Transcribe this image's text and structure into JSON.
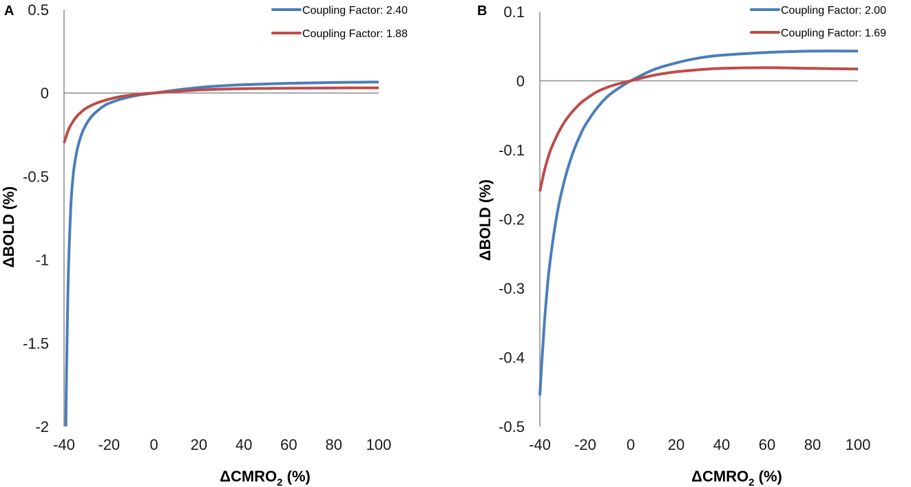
{
  "chart_data": [
    {
      "panel": "A",
      "type": "line",
      "xlabel": "ΔCMRO",
      "xlabel_sub": "2",
      "xlabel_unit": " (%)",
      "ylabel": "ΔBOLD (%)",
      "xlim": [
        -40,
        100
      ],
      "ylim": [
        -2,
        0.5
      ],
      "xticks": [
        -40,
        -20,
        0,
        20,
        40,
        60,
        80,
        100
      ],
      "yticks": [
        0.5,
        0,
        -0.5,
        -1,
        -1.5,
        -2
      ],
      "xtick_labels": [
        "-40",
        "-20",
        "0",
        "20",
        "40",
        "60",
        "80",
        "100"
      ],
      "ytick_labels": [
        "0.5",
        "0",
        "-0.5",
        "-1",
        "-1.5",
        "-2"
      ],
      "grid": false,
      "legend": "top-right",
      "series": [
        {
          "name": "Coupling Factor: 2.40",
          "color": "#4a7ebb",
          "x": [
            -39.2,
            -39,
            -38.5,
            -38,
            -37,
            -36,
            -35,
            -34,
            -32,
            -30,
            -28,
            -25,
            -22,
            -20,
            -15,
            -10,
            -5,
            0,
            10,
            20,
            30,
            40,
            60,
            80,
            100
          ],
          "y": [
            -2.0,
            -1.77,
            -1.36,
            -1.05,
            -0.68,
            -0.5,
            -0.4,
            -0.33,
            -0.24,
            -0.185,
            -0.145,
            -0.105,
            -0.075,
            -0.062,
            -0.038,
            -0.021,
            -0.009,
            0.0,
            0.018,
            0.033,
            0.043,
            0.05,
            0.058,
            0.063,
            0.066
          ]
        },
        {
          "name": "Coupling Factor: 1.88",
          "color": "#be4b48",
          "x": [
            -40,
            -38,
            -36,
            -34,
            -32,
            -30,
            -28,
            -25,
            -22,
            -20,
            -15,
            -10,
            -5,
            0,
            10,
            20,
            30,
            40,
            60,
            80,
            100
          ],
          "y": [
            -0.3,
            -0.22,
            -0.17,
            -0.135,
            -0.11,
            -0.09,
            -0.075,
            -0.058,
            -0.045,
            -0.037,
            -0.022,
            -0.012,
            -0.005,
            0.0,
            0.01,
            0.018,
            0.023,
            0.026,
            0.029,
            0.03,
            0.031
          ]
        }
      ]
    },
    {
      "panel": "B",
      "type": "line",
      "xlabel": "ΔCMRO",
      "xlabel_sub": "2",
      "xlabel_unit": " (%)",
      "ylabel": "ΔBOLD (%)",
      "xlim": [
        -40,
        100
      ],
      "ylim": [
        -0.5,
        0.1
      ],
      "xticks": [
        -40,
        -20,
        0,
        20,
        40,
        60,
        80,
        100
      ],
      "yticks": [
        0.1,
        0,
        -0.1,
        -0.2,
        -0.3,
        -0.4,
        -0.5
      ],
      "xtick_labels": [
        "-40",
        "-20",
        "0",
        "20",
        "40",
        "60",
        "80",
        "100"
      ],
      "ytick_labels": [
        "0.1",
        "0",
        "-0.1",
        "-0.2",
        "-0.3",
        "-0.4",
        "-0.5"
      ],
      "grid": false,
      "legend": "top-right",
      "series": [
        {
          "name": "Coupling Factor: 2.00",
          "color": "#4a7ebb",
          "x": [
            -40,
            -39,
            -38,
            -37,
            -36,
            -34,
            -32,
            -30,
            -28,
            -25,
            -22,
            -20,
            -15,
            -10,
            -5,
            0,
            10,
            20,
            30,
            40,
            60,
            80,
            100
          ],
          "y": [
            -0.455,
            -0.4,
            -0.35,
            -0.31,
            -0.275,
            -0.225,
            -0.185,
            -0.155,
            -0.13,
            -0.1,
            -0.077,
            -0.064,
            -0.04,
            -0.022,
            -0.01,
            0.0,
            0.016,
            0.026,
            0.033,
            0.037,
            0.041,
            0.043,
            0.043
          ]
        },
        {
          "name": "Coupling Factor: 1.69",
          "color": "#be4b48",
          "x": [
            -40,
            -38,
            -36,
            -34,
            -32,
            -30,
            -28,
            -25,
            -22,
            -20,
            -15,
            -10,
            -5,
            0,
            10,
            20,
            30,
            40,
            60,
            80,
            100
          ],
          "y": [
            -0.16,
            -0.13,
            -0.107,
            -0.09,
            -0.076,
            -0.064,
            -0.054,
            -0.042,
            -0.032,
            -0.027,
            -0.016,
            -0.009,
            -0.004,
            0.0,
            0.008,
            0.013,
            0.016,
            0.018,
            0.019,
            0.018,
            0.017
          ]
        }
      ]
    }
  ]
}
